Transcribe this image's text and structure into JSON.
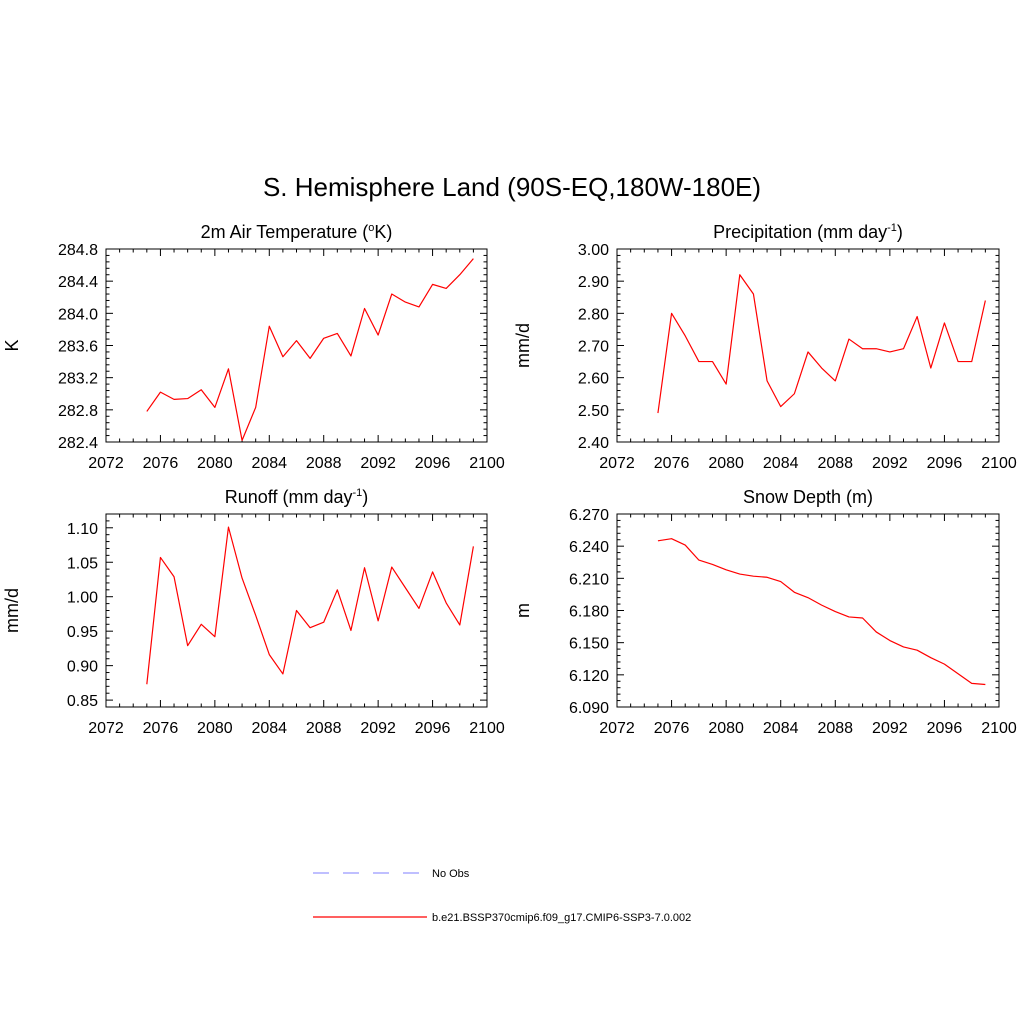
{
  "figure": {
    "title": "S. Hemisphere Land (90S-EQ,180W-180E)"
  },
  "legend": {
    "entries": [
      {
        "label": "No Obs",
        "color": "#9999ff",
        "style": "dashed"
      },
      {
        "label": "b.e21.BSSP370cmip6.f09_g17.CMIP6-SSP3-7.0.002",
        "color": "#ff0000",
        "style": "solid"
      }
    ]
  },
  "chart_data": [
    {
      "type": "line",
      "title": "2m Air Temperature (",
      "title_sup": "o",
      "title_after": "K)",
      "ylabel": "K",
      "xlim": [
        2072,
        2100
      ],
      "ylim": [
        282.4,
        284.8
      ],
      "xticks": [
        2072,
        2076,
        2080,
        2084,
        2088,
        2092,
        2096,
        2100
      ],
      "yticks": [
        "282.4",
        "282.8",
        "283.2",
        "283.6",
        "284.0",
        "284.4",
        "284.8"
      ],
      "grid": false,
      "series": [
        {
          "color": "#ff0000",
          "x": [
            2075,
            2076,
            2077,
            2078,
            2079,
            2080,
            2081,
            2082,
            2083,
            2084,
            2085,
            2086,
            2087,
            2088,
            2089,
            2090,
            2091,
            2092,
            2093,
            2094,
            2095,
            2096,
            2097,
            2098,
            2099
          ],
          "values": [
            282.78,
            283.02,
            282.93,
            282.94,
            283.05,
            282.83,
            283.31,
            282.42,
            282.83,
            283.84,
            283.46,
            283.66,
            283.44,
            283.69,
            283.75,
            283.47,
            284.06,
            283.73,
            284.24,
            284.14,
            284.08,
            284.36,
            284.31,
            284.48,
            284.68
          ]
        }
      ]
    },
    {
      "type": "line",
      "title": "Precipitation (mm day",
      "title_sup": "-1",
      "title_after": ")",
      "ylabel": "mm/d",
      "xlim": [
        2072,
        2100
      ],
      "ylim": [
        2.4,
        3.0
      ],
      "xticks": [
        2072,
        2076,
        2080,
        2084,
        2088,
        2092,
        2096,
        2100
      ],
      "yticks": [
        "2.40",
        "2.50",
        "2.60",
        "2.70",
        "2.80",
        "2.90",
        "3.00"
      ],
      "grid": false,
      "series": [
        {
          "color": "#ff0000",
          "x": [
            2075,
            2076,
            2077,
            2078,
            2079,
            2080,
            2081,
            2082,
            2083,
            2084,
            2085,
            2086,
            2087,
            2088,
            2089,
            2090,
            2091,
            2092,
            2093,
            2094,
            2095,
            2096,
            2097,
            2098,
            2099
          ],
          "values": [
            2.49,
            2.8,
            2.73,
            2.65,
            2.65,
            2.58,
            2.92,
            2.86,
            2.59,
            2.51,
            2.55,
            2.68,
            2.63,
            2.59,
            2.72,
            2.69,
            2.69,
            2.68,
            2.69,
            2.79,
            2.63,
            2.77,
            2.65,
            2.65,
            2.84
          ]
        }
      ]
    },
    {
      "type": "line",
      "title": "Runoff (mm day",
      "title_sup": "-1",
      "title_after": ")",
      "ylabel": "mm/d",
      "xlim": [
        2072,
        2100
      ],
      "ylim": [
        0.84,
        1.12
      ],
      "xticks": [
        2072,
        2076,
        2080,
        2084,
        2088,
        2092,
        2096,
        2100
      ],
      "yticks": [
        "0.85",
        "0.90",
        "0.95",
        "1.00",
        "1.05",
        "1.10"
      ],
      "grid": false,
      "series": [
        {
          "color": "#ff0000",
          "x": [
            2075,
            2076,
            2077,
            2078,
            2079,
            2080,
            2081,
            2082,
            2083,
            2084,
            2085,
            2086,
            2087,
            2088,
            2089,
            2090,
            2091,
            2092,
            2093,
            2094,
            2095,
            2096,
            2097,
            2098,
            2099
          ],
          "values": [
            0.873,
            1.057,
            1.029,
            0.929,
            0.96,
            0.942,
            1.101,
            1.027,
            0.973,
            0.916,
            0.888,
            0.98,
            0.955,
            0.963,
            1.01,
            0.951,
            1.042,
            0.965,
            1.043,
            1.013,
            0.983,
            1.036,
            0.991,
            0.959,
            1.073
          ]
        }
      ]
    },
    {
      "type": "line",
      "title": "Snow Depth (m)",
      "title_sup": "",
      "title_after": "",
      "ylabel": "m",
      "xlim": [
        2072,
        2100
      ],
      "ylim": [
        6.09,
        6.27
      ],
      "xticks": [
        2072,
        2076,
        2080,
        2084,
        2088,
        2092,
        2096,
        2100
      ],
      "yticks": [
        "6.090",
        "6.120",
        "6.150",
        "6.180",
        "6.210",
        "6.240",
        "6.270"
      ],
      "grid": false,
      "series": [
        {
          "color": "#ff0000",
          "x": [
            2075,
            2076,
            2077,
            2078,
            2079,
            2080,
            2081,
            2082,
            2083,
            2084,
            2085,
            2086,
            2087,
            2088,
            2089,
            2090,
            2091,
            2092,
            2093,
            2094,
            2095,
            2096,
            2097,
            2098,
            2099
          ],
          "values": [
            6.245,
            6.247,
            6.241,
            6.227,
            6.223,
            6.218,
            6.214,
            6.212,
            6.211,
            6.207,
            6.197,
            6.192,
            6.185,
            6.179,
            6.174,
            6.173,
            6.16,
            6.152,
            6.146,
            6.143,
            6.136,
            6.13,
            6.121,
            6.112,
            6.111
          ]
        }
      ]
    }
  ]
}
